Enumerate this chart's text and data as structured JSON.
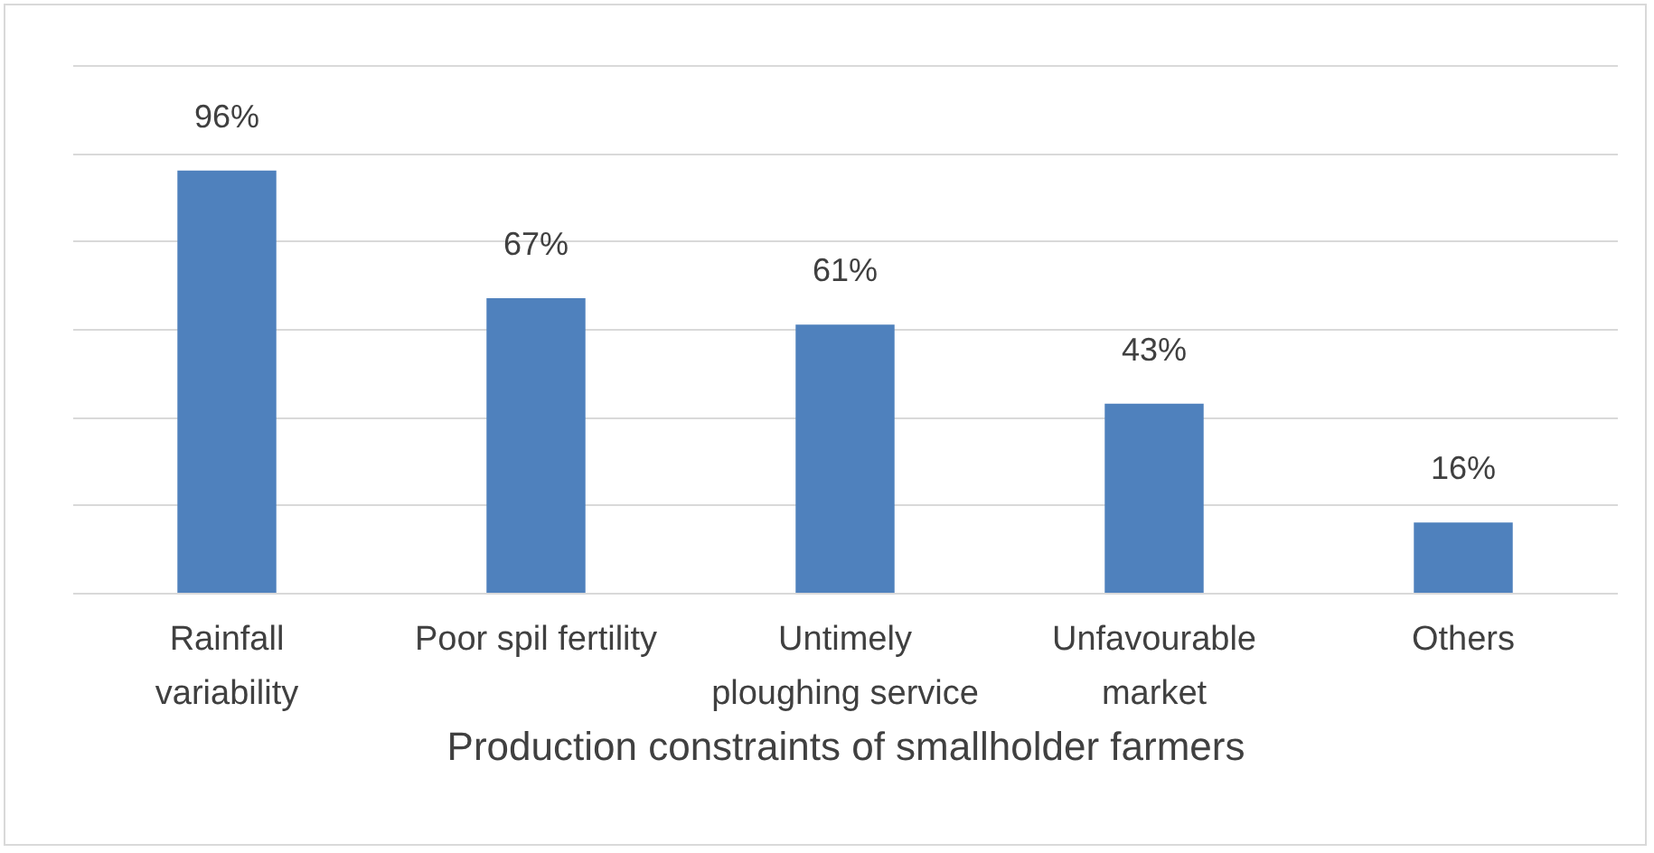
{
  "chart_data": {
    "type": "bar",
    "xlabel": "Production constraints of smallholder farmers",
    "categories": [
      "Rainfall variability",
      "Poor spil fertility",
      "Untimely ploughing service",
      "Unfavourable market",
      "Others"
    ],
    "values": [
      96,
      67,
      61,
      43,
      16
    ],
    "value_labels": [
      "96%",
      "67%",
      "61%",
      "43%",
      "16%"
    ],
    "color": "#4f81bd",
    "ylim": [
      0,
      120
    ],
    "yticks": [
      0,
      20,
      40,
      60,
      80,
      100,
      120
    ],
    "grid": "y",
    "tick_labels": "x"
  }
}
